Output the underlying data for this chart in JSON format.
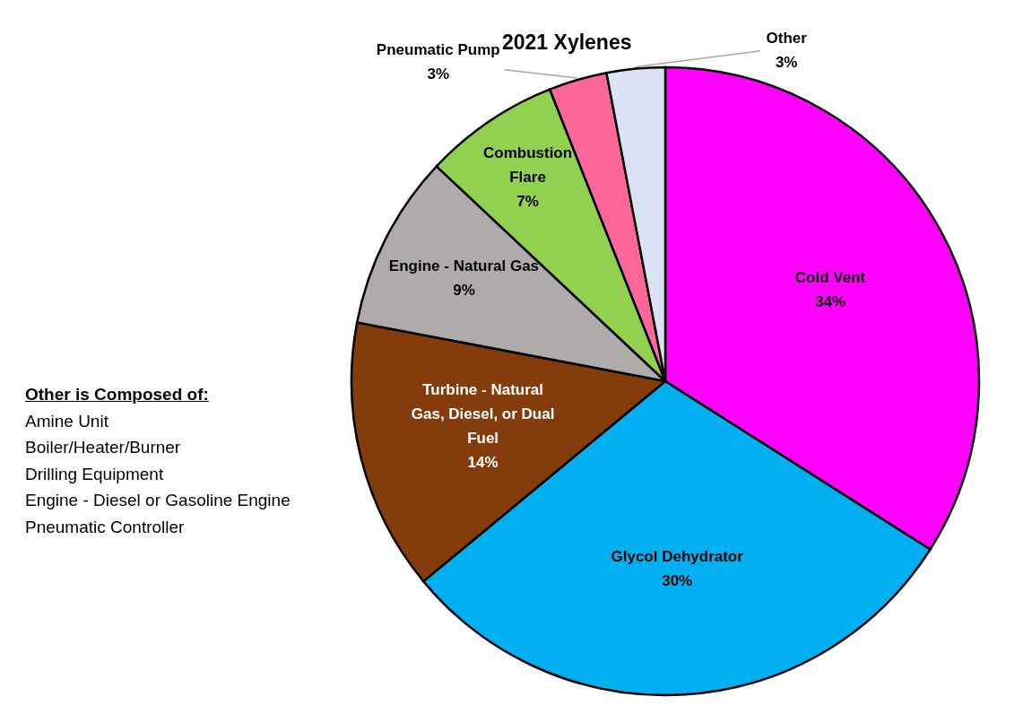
{
  "chart_data": {
    "type": "pie",
    "title": "2021 Xylenes",
    "categories": [
      "Cold Vent",
      "Glycol Dehydrator",
      "Turbine - Natural Gas, Diesel, or Dual Fuel",
      "Engine - Natural Gas",
      "Combustion Flare",
      "Pneumatic Pump",
      "Other"
    ],
    "values": [
      34,
      30,
      14,
      9,
      7,
      3,
      3
    ],
    "value_labels": [
      "34%",
      "30%",
      "14%",
      "9%",
      "7%",
      "3%",
      "3%"
    ],
    "colors": [
      "#ff00ff",
      "#00b0f0",
      "#843c0c",
      "#afabab",
      "#92d050",
      "#ff6699",
      "#dae3f3"
    ],
    "legend": false,
    "annotations": [
      "Other is Composed of:",
      "Amine Unit",
      "Boiler/Heater/Burner",
      "Drilling Equipment",
      "Engine - Diesel or Gasoline Engine",
      "Pneumatic Controller"
    ]
  }
}
